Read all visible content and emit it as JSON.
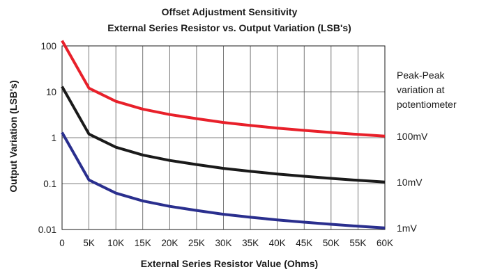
{
  "chart_data": {
    "type": "line",
    "title": "Offset Adjustment Sensitivity",
    "subtitle": "External Series Resistor vs. Output Variation (LSB's)",
    "xlabel": "External Series Resistor Value (Ohms)",
    "ylabel": "Output Variation (LSB's)",
    "x_scale": "linear",
    "y_scale": "log",
    "xlim": [
      0,
      60000
    ],
    "ylim": [
      0.01,
      100
    ],
    "grid": true,
    "x_ticks": [
      0,
      5000,
      10000,
      15000,
      20000,
      25000,
      30000,
      35000,
      40000,
      45000,
      50000,
      55000,
      60000
    ],
    "x_tick_labels": [
      "0",
      "5K",
      "10K",
      "15K",
      "20K",
      "25K",
      "30K",
      "35K",
      "40K",
      "45K",
      "50K",
      "55K",
      "60K"
    ],
    "y_ticks": [
      0.01,
      0.1,
      1,
      10,
      100
    ],
    "y_tick_labels": [
      "0.01",
      "0.1",
      "1",
      "10",
      "100"
    ],
    "annotation": [
      "Peak-Peak",
      "variation at",
      "potentiometer"
    ],
    "x": [
      0,
      5000,
      10000,
      15000,
      20000,
      25000,
      30000,
      35000,
      40000,
      45000,
      50000,
      55000,
      60000
    ],
    "series": [
      {
        "name": "100mV",
        "color": "#e8202a",
        "values": [
          130,
          12,
          6.2,
          4.2,
          3.2,
          2.6,
          2.15,
          1.85,
          1.62,
          1.44,
          1.3,
          1.18,
          1.08
        ]
      },
      {
        "name": "10mV",
        "color": "#1a1a1a",
        "values": [
          13,
          1.2,
          0.62,
          0.42,
          0.32,
          0.26,
          0.215,
          0.185,
          0.162,
          0.144,
          0.13,
          0.118,
          0.108
        ]
      },
      {
        "name": "1mV",
        "color": "#2a2f8e",
        "values": [
          1.3,
          0.12,
          0.062,
          0.042,
          0.032,
          0.026,
          0.0215,
          0.0185,
          0.0162,
          0.0144,
          0.013,
          0.0118,
          0.0108
        ]
      }
    ]
  }
}
